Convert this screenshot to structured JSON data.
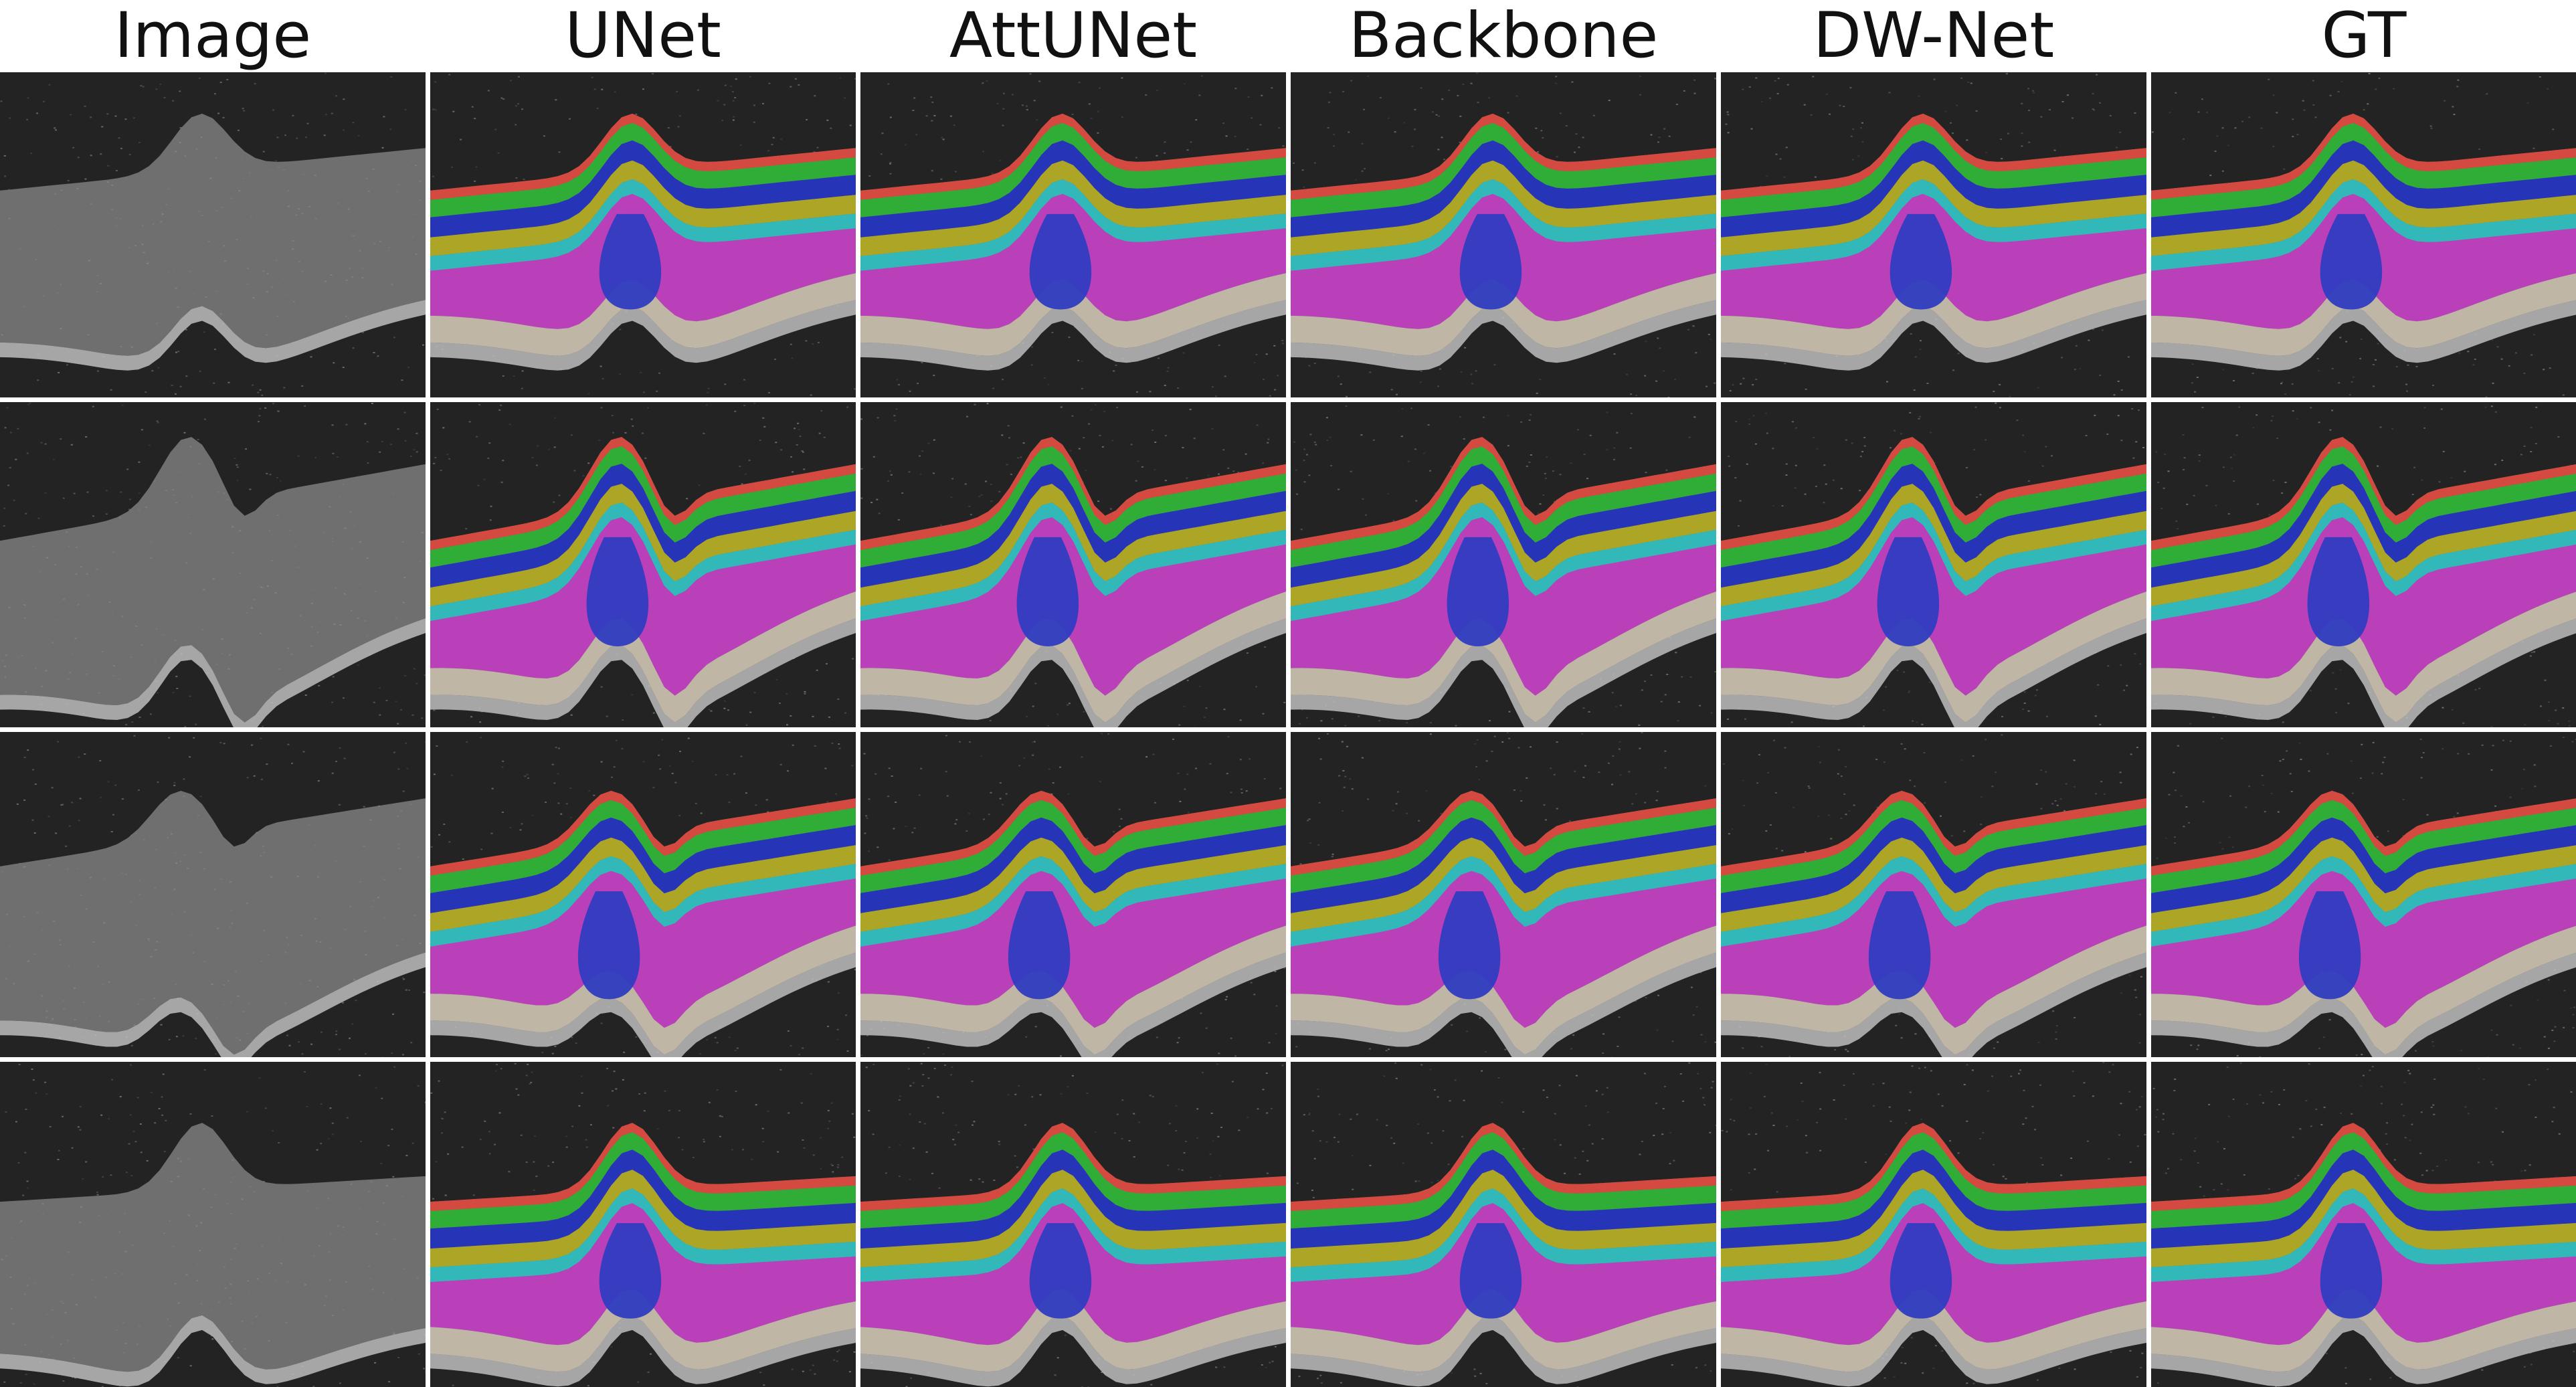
{
  "columns": [
    {
      "label": "Image",
      "overlay": false
    },
    {
      "label": "UNet",
      "overlay": true
    },
    {
      "label": "AttUNet",
      "overlay": true
    },
    {
      "label": "Backbone",
      "overlay": true
    },
    {
      "label": "DW-Net",
      "overlay": true
    },
    {
      "label": "GT",
      "overlay": true
    }
  ],
  "rows": 4,
  "layer_colors": {
    "top": "#e0463c",
    "second": "#29b431",
    "third": "#1f2fbf",
    "fourth": "#b3ab1f",
    "fifth": "#2cc0c0",
    "sixth": "#c33bc3",
    "base": "#c9beab",
    "lesion": "#2f3cc0"
  },
  "background_color": "#232323",
  "scan_color": "#8a8a8a"
}
